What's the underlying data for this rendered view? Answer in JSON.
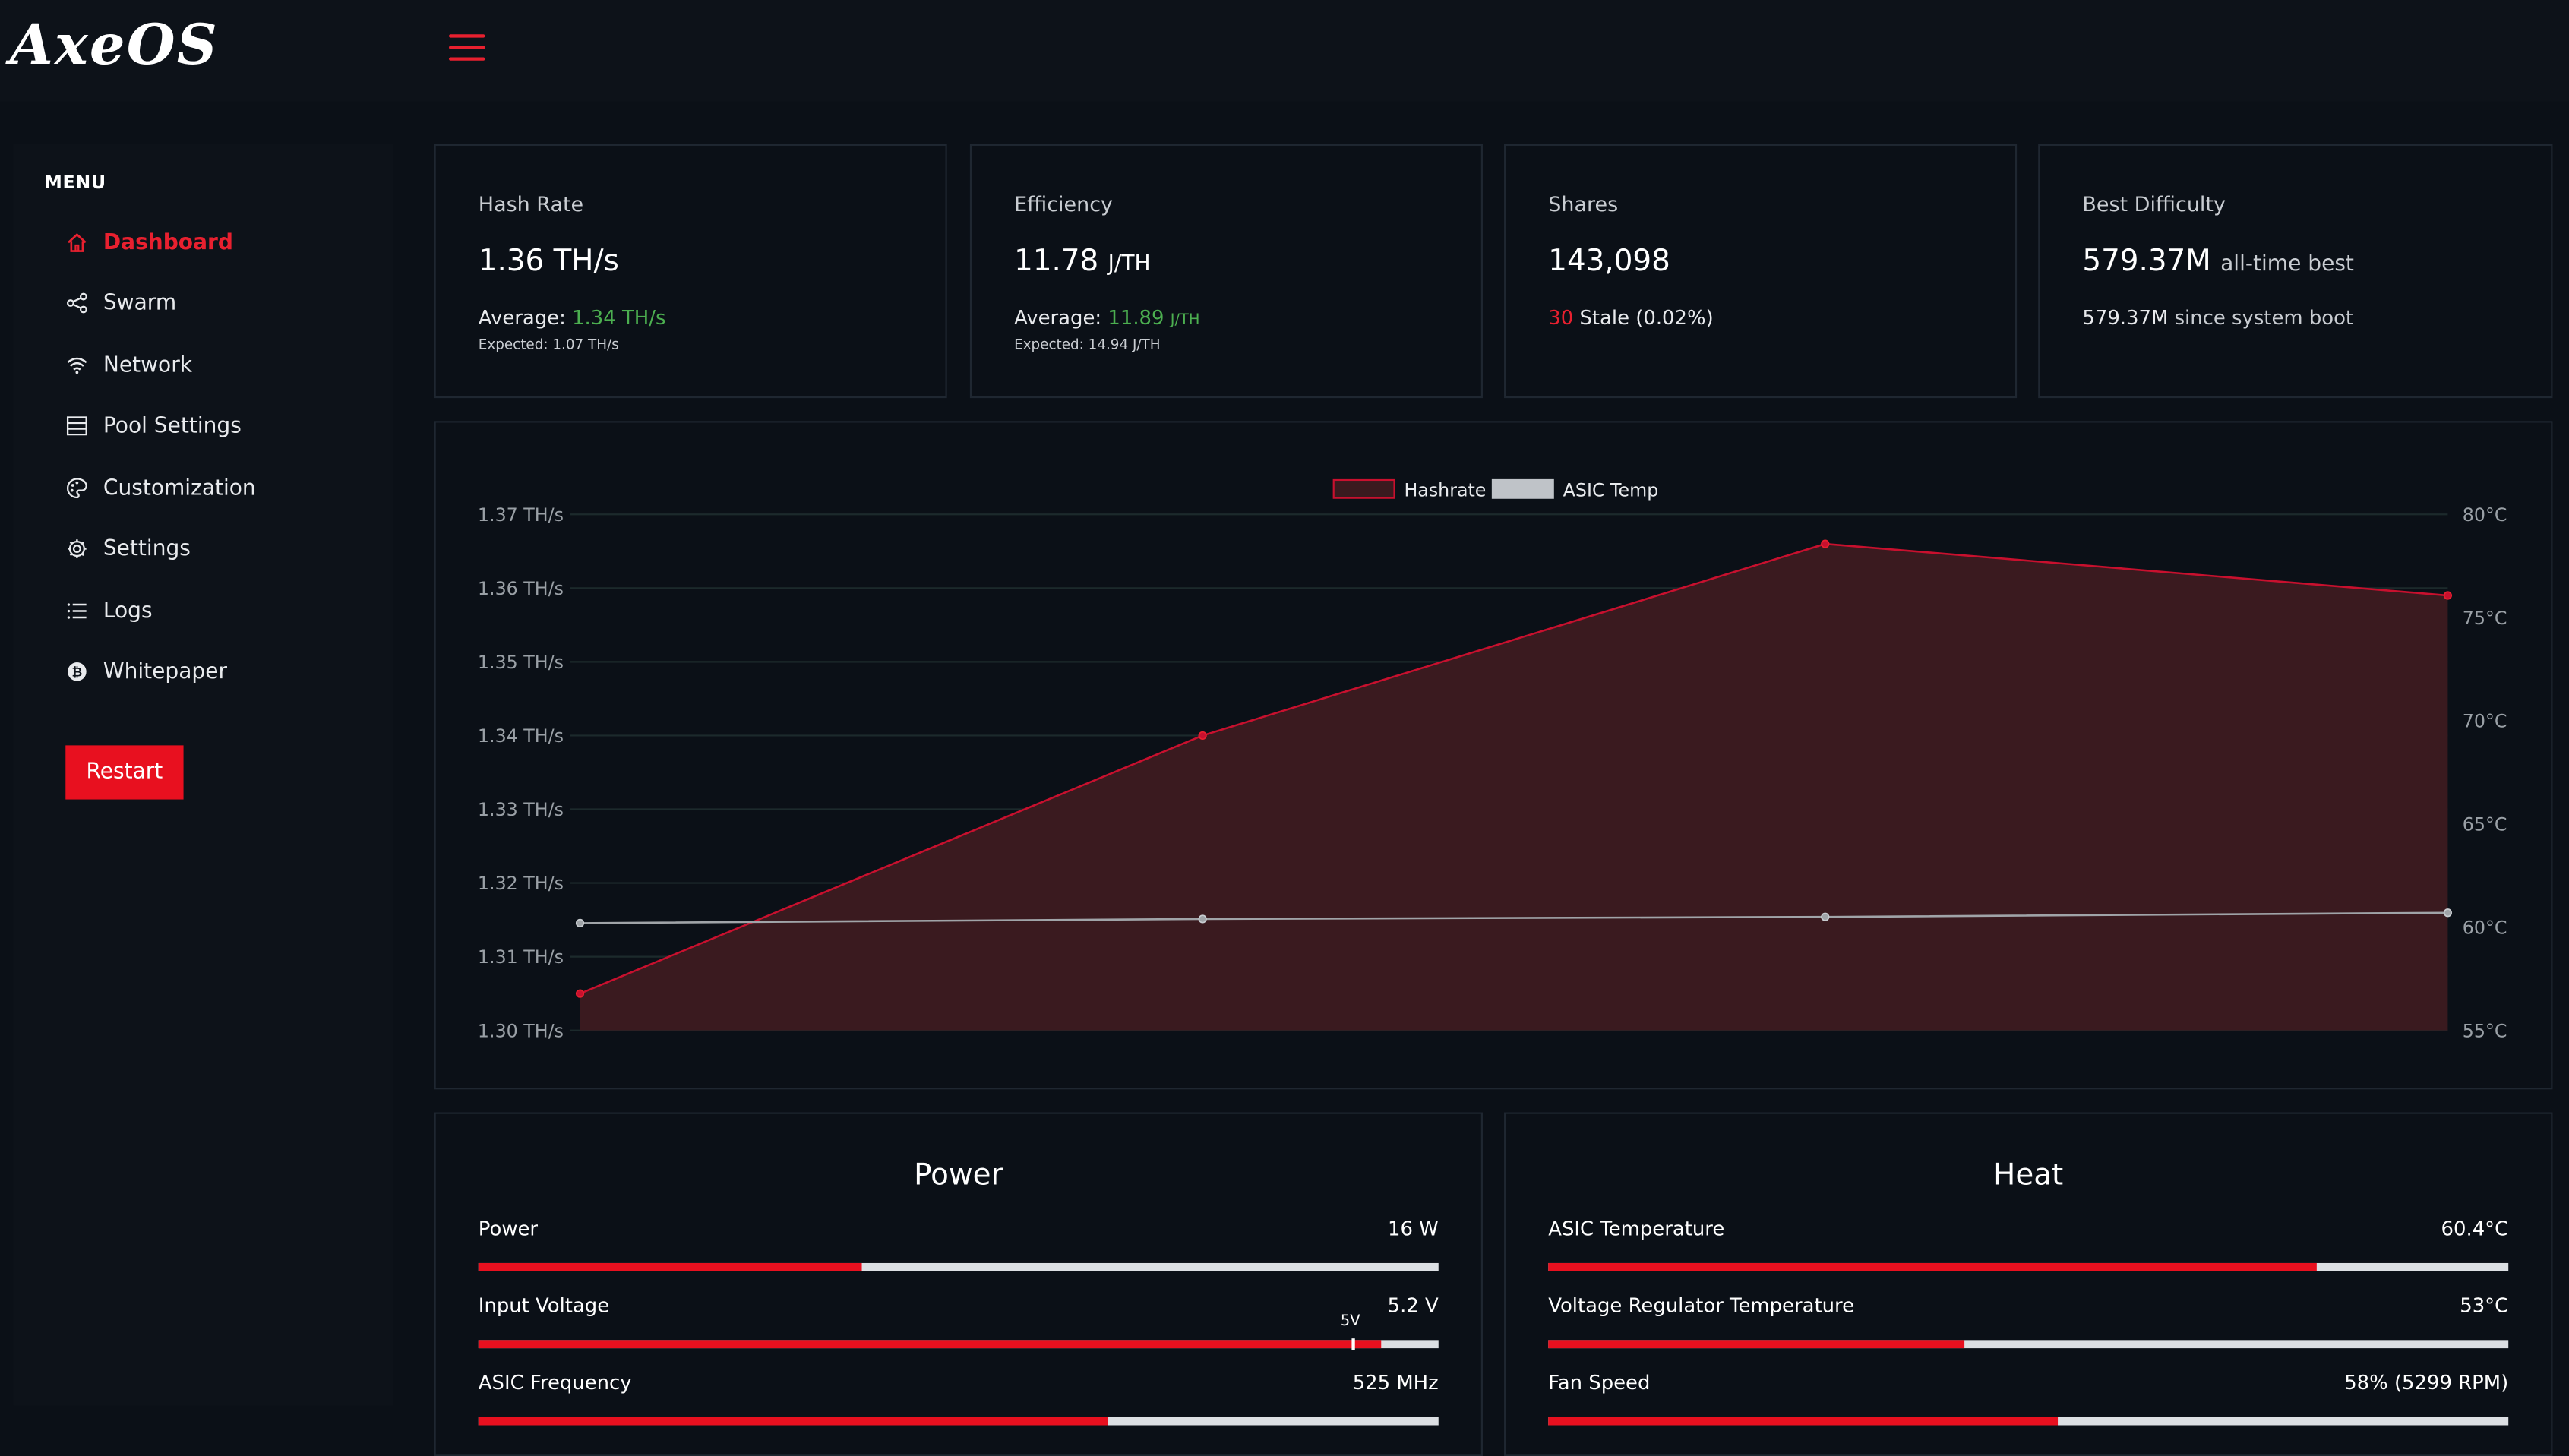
{
  "app": {
    "logo_text": "AxeOS",
    "accent_color": "#e8202f"
  },
  "sidebar": {
    "menu_title": "MENU",
    "items": [
      {
        "label": "Dashboard",
        "icon": "home-icon",
        "active": true
      },
      {
        "label": "Swarm",
        "icon": "share-icon",
        "active": false
      },
      {
        "label": "Network",
        "icon": "wifi-icon",
        "active": false
      },
      {
        "label": "Pool Settings",
        "icon": "server-icon",
        "active": false
      },
      {
        "label": "Customization",
        "icon": "palette-icon",
        "active": false
      },
      {
        "label": "Settings",
        "icon": "gear-icon",
        "active": false
      },
      {
        "label": "Logs",
        "icon": "list-icon",
        "active": false
      },
      {
        "label": "Whitepaper",
        "icon": "bitcoin-icon",
        "active": false
      }
    ],
    "restart_label": "Restart"
  },
  "stats": {
    "hashrate": {
      "label": "Hash Rate",
      "value": "1.36 TH/s",
      "avg_prefix": "Average:",
      "avg_value": "1.34 TH/s",
      "expected": "Expected: 1.07 TH/s"
    },
    "efficiency": {
      "label": "Efficiency",
      "value": "11.78",
      "unit": "J/TH",
      "avg_prefix": "Average:",
      "avg_value": "11.89",
      "avg_unit": "J/TH",
      "expected": "Expected: 14.94 J/TH"
    },
    "shares": {
      "label": "Shares",
      "value": "143,098",
      "stale_count": "30",
      "stale_text": "Stale (0.02%)"
    },
    "best_difficulty": {
      "label": "Best Difficulty",
      "value": "579.37M",
      "value_suffix": "all-time best",
      "since_boot_value": "579.37M",
      "since_boot_text": "since system boot"
    }
  },
  "chart_data": {
    "type": "line",
    "legend": [
      "Hashrate",
      "ASIC Temp"
    ],
    "legend_position": "top-center",
    "grid": true,
    "y_left_ticks": [
      "1.37 TH/s",
      "1.36 TH/s",
      "1.35 TH/s",
      "1.34 TH/s",
      "1.33 TH/s",
      "1.32 TH/s",
      "1.31 TH/s",
      "1.30 TH/s"
    ],
    "y_right_ticks": [
      "80°C",
      "75°C",
      "70°C",
      "65°C",
      "60°C",
      "55°C"
    ],
    "y_left_range": [
      1.3,
      1.37
    ],
    "y_right_range": [
      55,
      80
    ],
    "series": [
      {
        "name": "Hashrate",
        "axis": "left",
        "color": "#c8102e",
        "fill": true,
        "values": [
          1.305,
          1.34,
          1.366,
          1.359
        ]
      },
      {
        "name": "ASIC Temp",
        "axis": "right",
        "color": "#a0a4a8",
        "fill": false,
        "values": [
          60.2,
          60.4,
          60.5,
          60.7
        ]
      }
    ]
  },
  "power_panel": {
    "title": "Power",
    "rows": [
      {
        "label": "Power",
        "value": "16 W",
        "fraction": 0.4
      },
      {
        "label": "Input Voltage",
        "value": "5.2 V",
        "fraction": 0.94,
        "marker_label": "5V",
        "marker_fraction": 0.91
      },
      {
        "label": "ASIC Frequency",
        "value": "525 MHz",
        "fraction": 0.656
      }
    ]
  },
  "heat_panel": {
    "title": "Heat",
    "rows": [
      {
        "label": "ASIC Temperature",
        "value": "60.4°C",
        "fraction": 0.8
      },
      {
        "label": "Voltage Regulator Temperature",
        "value": "53°C",
        "fraction": 0.434
      },
      {
        "label": "Fan Speed",
        "value": "58% (5299 RPM)",
        "fraction": 0.53
      }
    ]
  }
}
